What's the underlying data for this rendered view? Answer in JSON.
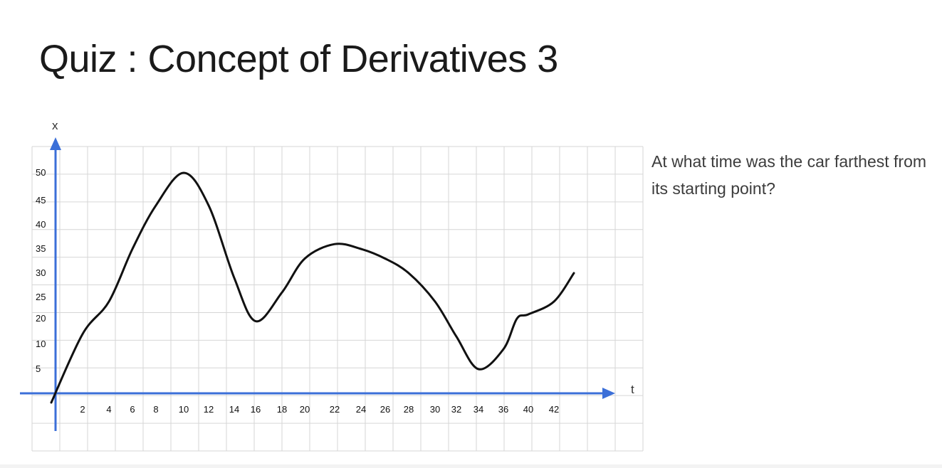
{
  "slide": {
    "title": "Quiz : Concept of Derivatives 3",
    "question": "At what time was the car farthest from its starting point?"
  },
  "chart_data": {
    "type": "line",
    "xlabel": "t",
    "ylabel": "x",
    "xticks": [
      2,
      4,
      6,
      8,
      10,
      12,
      14,
      16,
      18,
      20,
      22,
      24,
      26,
      28,
      30,
      32,
      34,
      36,
      40,
      42
    ],
    "yticks": [
      5,
      10,
      20,
      25,
      30,
      35,
      40,
      45,
      50
    ],
    "grid": true,
    "axis_color": "#3b6fd8",
    "line_color": "#111111",
    "series": [
      {
        "x": [
          0,
          2,
          4,
          6,
          8,
          10,
          12,
          14,
          16,
          18,
          20,
          22,
          24,
          26,
          28,
          30,
          32,
          34,
          36,
          38,
          40,
          42,
          43
        ],
        "y": [
          0,
          14,
          24,
          35,
          44,
          50,
          44,
          29,
          19,
          26,
          33,
          36,
          35,
          33,
          30,
          24,
          13,
          5,
          9,
          20,
          21,
          24,
          30
        ]
      }
    ]
  }
}
